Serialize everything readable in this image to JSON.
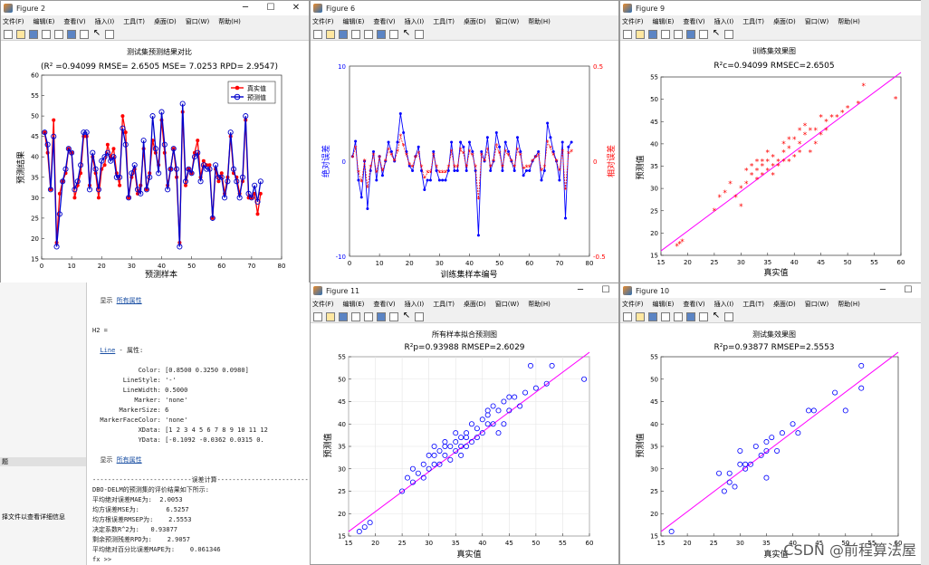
{
  "menu": [
    "文件(F)",
    "编辑(E)",
    "查看(V)",
    "插入(I)",
    "工具(T)",
    "桌面(D)",
    "窗口(W)",
    "帮助(H)"
  ],
  "fig2": {
    "win_title": "Figure 2",
    "title": "测试集预测结果对比",
    "subtitle": "(R² =0.94099 RMSE= 2.6505 MSE= 7.0253 RPD= 2.9547)",
    "xlabel": "预测样本",
    "ylabel": "预测结果",
    "legend": [
      "真实值",
      "预测值"
    ],
    "xticks": [
      "0",
      "10",
      "20",
      "30",
      "40",
      "50",
      "60",
      "70",
      "80"
    ],
    "yticks": [
      "15",
      "20",
      "25",
      "30",
      "35",
      "40",
      "45",
      "50",
      "55",
      "60"
    ]
  },
  "fig6": {
    "win_title": "Figure 6",
    "xlabel": "训练集样本编号",
    "ylabel_left": "绝对误差",
    "ylabel_right": "相对误差",
    "xticks": [
      "0",
      "10",
      "20",
      "30",
      "40",
      "50",
      "60",
      "70",
      "80"
    ],
    "yticks_left": [
      "10",
      "0",
      "-10"
    ],
    "yticks_right": [
      "0.5",
      "0",
      "-0.5"
    ]
  },
  "fig9": {
    "win_title": "Figure 9",
    "title": "训练集效果图",
    "subtitle": "R²c=0.94099  RMSEC=2.6505",
    "xlabel": "真实值",
    "ylabel": "预测值",
    "xticks": [
      "15",
      "20",
      "25",
      "30",
      "35",
      "40",
      "45",
      "50",
      "55",
      "60"
    ],
    "yticks": [
      "15",
      "20",
      "25",
      "30",
      "35",
      "40",
      "45",
      "50",
      "55"
    ]
  },
  "fig11": {
    "win_title": "Figure 11",
    "title": "所有样本拟合预测图",
    "subtitle": "R²p=0.93988  RMSEP=2.6029",
    "xlabel": "真实值",
    "ylabel": "预测值",
    "xticks": [
      "15",
      "20",
      "25",
      "30",
      "35",
      "40",
      "45",
      "50",
      "55",
      "60"
    ],
    "yticks": [
      "15",
      "20",
      "25",
      "30",
      "35",
      "40",
      "45",
      "50",
      "55"
    ]
  },
  "fig10": {
    "win_title": "Figure 10",
    "title": "测试集效果图",
    "subtitle": "R²p=0.93877  RMSEP=2.5553",
    "xlabel": "真实值",
    "ylabel": "预测值",
    "xticks": [
      "15",
      "20",
      "25",
      "30",
      "35",
      "40",
      "45",
      "50",
      "55",
      "60"
    ],
    "yticks": [
      "15",
      "20",
      "25",
      "30",
      "35",
      "40",
      "45",
      "50",
      "55"
    ]
  },
  "console": {
    "show_label": "显示",
    "all_props": "所有属性",
    "h2": "H2 =",
    "line_label": "Line",
    "props_suffix": " - 属性:",
    "props": [
      "            Color: [0.8500 0.3250 0.0980]",
      "        LineStyle: '-'",
      "        LineWidth: 0.5000",
      "           Marker: 'none'",
      "       MarkerSize: 6",
      "  MarkerFaceColor: 'none'",
      "            XData: [1 2 3 4 5 6 7 8 9 10 11 12",
      "            YData: [-0.1092 -0.0362 0.0315 0."
    ],
    "sep": "--------------------------误差计算--------------------------",
    "results": [
      "DBO-DELM的预测集的评价结果如下所示:",
      "平均绝对误差MAE为:  2.0053",
      "均方误差MSE为:       6.5257",
      "均方根误差RMSEP为:    2.5553",
      "决定系数R^2为:   0.93877",
      "剩余预测残差RPD为:    2.9057",
      "平均绝对百分比误差MAPE为:    0.061346"
    ],
    "prompt": "fx >>"
  },
  "left_pane": {
    "item": "题",
    "info": "择文件以查看详细信息"
  },
  "watermark": "CSDN @前程算法屋",
  "chart_data": [
    {
      "type": "line",
      "title": "测试集预测结果对比",
      "xlabel": "预测样本",
      "ylabel": "预测结果",
      "xlim": [
        0,
        80
      ],
      "ylim": [
        15,
        60
      ],
      "series": [
        {
          "name": "真实值",
          "color": "#ff0000",
          "values": [
            46,
            41,
            32,
            49,
            19,
            31,
            34,
            36,
            42,
            41,
            30,
            33,
            36,
            45,
            45,
            33,
            40,
            36,
            30,
            37,
            38,
            43,
            40,
            42,
            36,
            33,
            50,
            46,
            30,
            35,
            37,
            31,
            33,
            42,
            32,
            36,
            44,
            41,
            38,
            49,
            41,
            33,
            37,
            42,
            35,
            19,
            51,
            33,
            37,
            36,
            41,
            44,
            35,
            39,
            38,
            38,
            25,
            37,
            34,
            36,
            31,
            35,
            45,
            36,
            35,
            31,
            34,
            49,
            30,
            30,
            31,
            26,
            31
          ]
        },
        {
          "name": "预测值",
          "color": "#0000cc",
          "values": [
            46,
            43,
            32,
            45,
            18,
            26,
            34,
            37,
            42,
            41,
            32,
            34,
            38,
            46,
            46,
            32,
            41,
            37,
            32,
            39,
            40,
            41,
            39,
            40,
            35,
            35,
            47,
            43,
            30,
            36,
            38,
            32,
            31,
            44,
            32,
            35,
            50,
            42,
            36,
            51,
            43,
            32,
            37,
            42,
            37,
            18,
            53,
            34,
            37,
            36,
            40,
            41,
            34,
            38,
            37,
            37,
            25,
            38,
            35,
            35,
            30,
            34,
            46,
            37,
            34,
            30,
            35,
            50,
            31,
            30,
            33,
            29,
            34
          ]
        }
      ]
    },
    {
      "type": "line",
      "xlabel": "训练集样本编号",
      "ylabel_left": "绝对误差",
      "ylabel_right": "相对误差",
      "xlim": [
        0,
        80
      ],
      "ylim_left": [
        -10,
        10
      ],
      "ylim_right": [
        -0.5,
        0.5
      ],
      "series": [
        {
          "name": "绝对误差",
          "color": "#0000ff",
          "values": [
            0.5,
            2.1,
            -2.0,
            -3.8,
            0.0,
            -5.0,
            -1.0,
            1.0,
            -2.0,
            0.5,
            -1.5,
            0.0,
            2.0,
            1.0,
            0.0,
            2.0,
            5.0,
            3.0,
            1.0,
            -0.5,
            -1.0,
            0.5,
            1.5,
            -1.0,
            -3.0,
            -2.0,
            -2.0,
            1.0,
            -1.0,
            -2.0,
            -2.0,
            -2.0,
            -1.0,
            2.0,
            -1.0,
            -1.0,
            2.0,
            1.5,
            -1.0,
            2.0,
            1.0,
            -1.0,
            -7.8,
            1.0,
            0.0,
            2.5,
            -1.0,
            0.0,
            3.0,
            1.5,
            -1.0,
            2.0,
            1.0,
            0.0,
            -1.0,
            2.5,
            1.0,
            -1.5,
            -1.0,
            -1.0,
            0.0,
            0.5,
            1.0,
            -2.0,
            -1.0,
            4.0,
            2.5,
            1.0,
            0.0,
            -2.0,
            2.0,
            -6.0,
            1.5,
            2.0
          ]
        },
        {
          "name": "相对误差",
          "color": "#ff0000",
          "values": [
            0.02,
            0.07,
            -0.06,
            -0.11,
            0.0,
            -0.14,
            -0.03,
            0.03,
            -0.06,
            0.02,
            -0.05,
            0.0,
            0.06,
            0.03,
            0.0,
            0.05,
            0.13,
            0.08,
            0.03,
            -0.02,
            -0.03,
            0.02,
            0.04,
            -0.03,
            -0.09,
            -0.06,
            -0.06,
            0.03,
            -0.03,
            -0.06,
            -0.06,
            -0.06,
            -0.03,
            0.05,
            -0.03,
            -0.03,
            0.06,
            0.04,
            -0.03,
            0.05,
            0.03,
            -0.03,
            -0.2,
            0.03,
            0.0,
            0.06,
            -0.03,
            0.0,
            0.08,
            0.04,
            -0.03,
            0.05,
            0.03,
            0.0,
            -0.03,
            0.06,
            0.03,
            -0.04,
            -0.03,
            -0.03,
            0.0,
            0.02,
            0.03,
            -0.05,
            -0.03,
            0.1,
            0.07,
            0.03,
            0.0,
            -0.05,
            0.05,
            -0.15,
            0.04,
            0.05
          ]
        }
      ]
    },
    {
      "type": "scatter",
      "title": "训练集效果图",
      "xlabel": "真实值",
      "ylabel": "预测值",
      "xlim": [
        15,
        60
      ],
      "ylim": [
        15,
        55
      ],
      "marker": "*",
      "marker_color": "#ff0000",
      "fit_color": "#ff00ff",
      "x": [
        18,
        18.5,
        19,
        25,
        26,
        27,
        28,
        29,
        30,
        30,
        31,
        31,
        32,
        32,
        33,
        33,
        33,
        34,
        34,
        34,
        35,
        35,
        35,
        36,
        36,
        36,
        37,
        37,
        38,
        38,
        38,
        39,
        39,
        39,
        40,
        40,
        41,
        41,
        41,
        42,
        42,
        43,
        43,
        44,
        44,
        45,
        45,
        46,
        46,
        47,
        48,
        49,
        50,
        52,
        53,
        59
      ],
      "y": [
        17,
        17.5,
        18,
        25,
        28,
        29,
        31,
        28,
        30,
        26,
        31,
        34,
        33,
        35,
        32,
        34,
        36,
        33,
        35,
        36,
        34,
        36,
        38,
        33,
        35,
        37,
        35,
        36,
        36,
        38,
        40,
        36,
        39,
        41,
        37,
        41,
        38,
        40,
        43,
        42,
        44,
        38,
        43,
        40,
        43,
        42,
        46,
        43,
        45,
        46,
        46,
        47,
        48,
        49,
        53,
        50
      ]
    },
    {
      "type": "scatter",
      "title": "所有样本拟合预测图",
      "xlabel": "真实值",
      "ylabel": "预测值",
      "xlim": [
        15,
        60
      ],
      "ylim": [
        15,
        55
      ],
      "marker": "o",
      "marker_color": "#0000ff",
      "fit_color": "#ff00ff",
      "x": [
        17,
        18,
        19,
        25,
        26,
        27,
        27,
        28,
        29,
        29,
        30,
        30,
        31,
        31,
        31,
        32,
        32,
        33,
        33,
        33,
        34,
        34,
        35,
        35,
        35,
        36,
        36,
        36,
        37,
        37,
        37,
        38,
        38,
        39,
        39,
        40,
        40,
        41,
        41,
        41,
        42,
        42,
        43,
        43,
        44,
        44,
        45,
        45,
        46,
        47,
        48,
        49,
        50,
        52,
        53,
        59
      ],
      "y": [
        16,
        17,
        18,
        25,
        28,
        27,
        30,
        29,
        28,
        31,
        30,
        33,
        31,
        33,
        35,
        31,
        34,
        33,
        35,
        36,
        32,
        35,
        34,
        36,
        38,
        33,
        35,
        37,
        35,
        37,
        38,
        36,
        40,
        37,
        39,
        38,
        41,
        40,
        42,
        43,
        40,
        44,
        38,
        43,
        40,
        45,
        43,
        46,
        46,
        44,
        47,
        53,
        48,
        49,
        53,
        50
      ]
    },
    {
      "type": "scatter",
      "title": "测试集效果图",
      "xlabel": "真实值",
      "ylabel": "预测值",
      "xlim": [
        15,
        60
      ],
      "ylim": [
        15,
        55
      ],
      "marker": "o",
      "marker_color": "#0000ff",
      "fit_color": "#ff00ff",
      "x": [
        17,
        26,
        27,
        28,
        28,
        29,
        30,
        30,
        31,
        31,
        32,
        33,
        34,
        35,
        35,
        35,
        36,
        37,
        38,
        40,
        41,
        43,
        44,
        48,
        50,
        53,
        53
      ],
      "y": [
        16,
        29,
        25,
        27,
        29,
        26,
        31,
        34,
        30,
        31,
        31,
        35,
        33,
        28,
        34,
        36,
        37,
        34,
        38,
        40,
        38,
        43,
        43,
        47,
        43,
        53,
        48
      ]
    }
  ]
}
